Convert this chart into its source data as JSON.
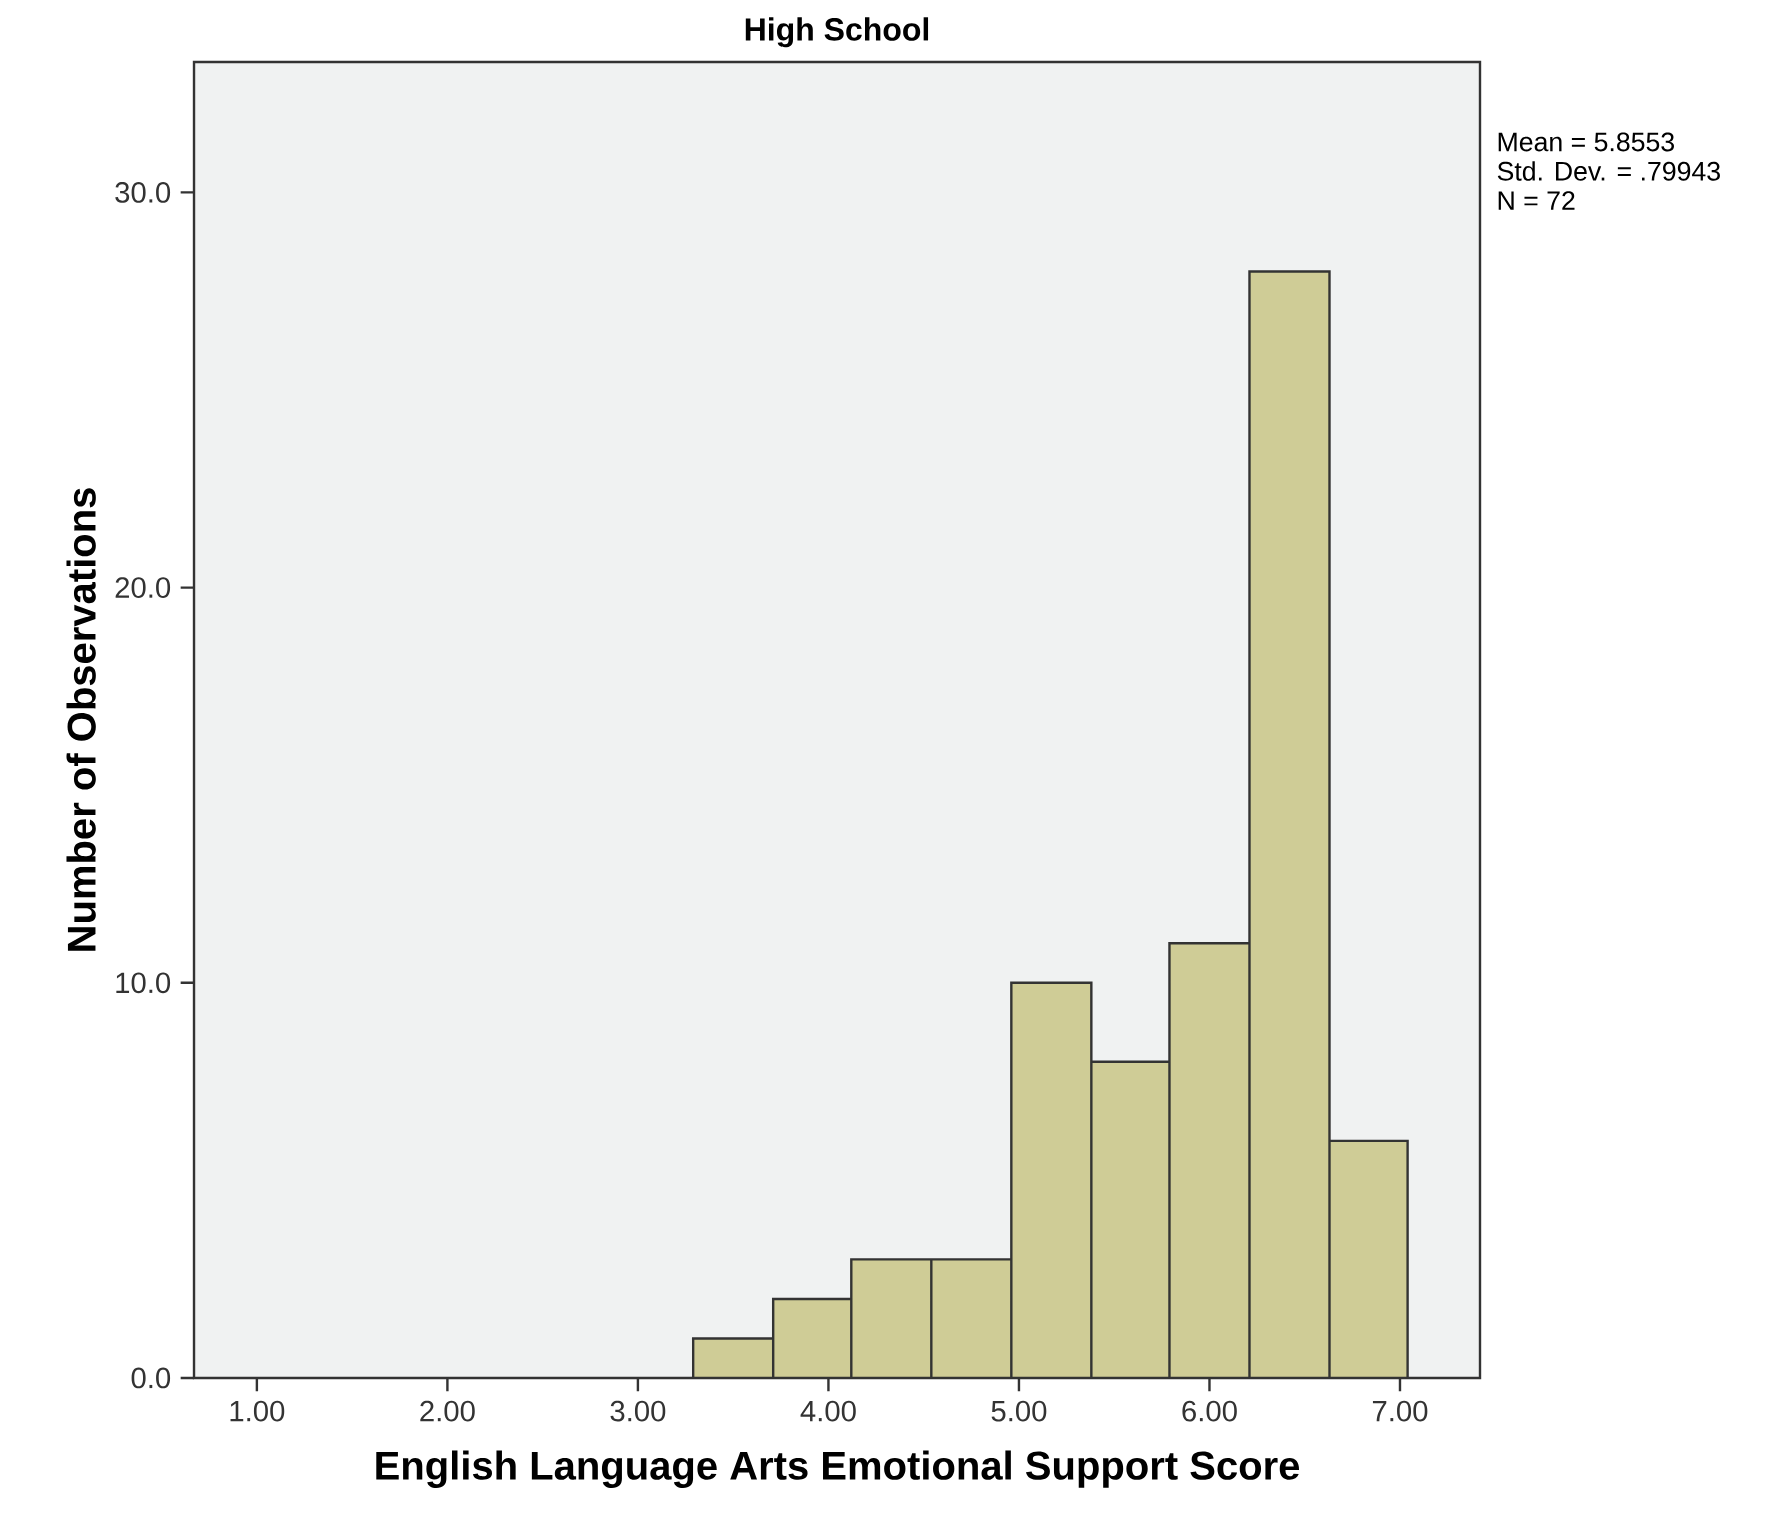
{
  "chart_data": {
    "type": "histogram",
    "title": "High School",
    "xlabel": "English Language Arts Emotional Support Score",
    "ylabel": "Number of Observations",
    "bins": [
      3.29,
      3.71,
      4.12,
      4.54,
      4.96,
      5.38,
      5.79,
      6.21,
      6.63,
      7.04
    ],
    "values": [
      1,
      2,
      3,
      3,
      10,
      8,
      11,
      28,
      6
    ],
    "color": "#cfcc96",
    "xlim": [
      0.67,
      7.42
    ],
    "ylim": [
      0,
      33.3
    ],
    "xticks": [
      {
        "value": 1,
        "label": "1.00"
      },
      {
        "value": 2,
        "label": "2.00"
      },
      {
        "value": 3,
        "label": "3.00"
      },
      {
        "value": 4,
        "label": "4.00"
      },
      {
        "value": 5,
        "label": "5.00"
      },
      {
        "value": 6,
        "label": "6.00"
      },
      {
        "value": 7,
        "label": "7.00"
      }
    ],
    "yticks": [
      {
        "value": 0,
        "label": "0.0"
      },
      {
        "value": 10,
        "label": "10.0"
      },
      {
        "value": 20,
        "label": "20.0"
      },
      {
        "value": 30,
        "label": "30.0"
      }
    ],
    "annotations": [
      "Mean = 5.8553",
      "Std. Dev. = .79943",
      "N = 72"
    ]
  }
}
